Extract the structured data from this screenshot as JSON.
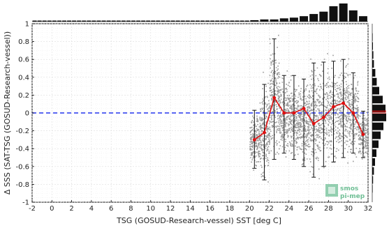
{
  "chart_data": {
    "type": "scatter",
    "xlabel": "TSG (GOSUD-Research-vessel) SST [deg C]",
    "ylabel": "Δ SSS (SAT-TSG (GOSUD-Research-vessel))",
    "xlim": [
      -2,
      32
    ],
    "ylim": [
      -1,
      1
    ],
    "x_ticks": [
      "-2",
      "0",
      "2",
      "4",
      "6",
      "8",
      "10",
      "12",
      "14",
      "16",
      "18",
      "20",
      "22",
      "24",
      "26",
      "28",
      "30",
      "32"
    ],
    "y_ticks": [
      "-1",
      "-0.8",
      "-0.6",
      "-0.4",
      "-0.2",
      "0",
      "0.2",
      "0.4",
      "0.6",
      "0.8",
      "1"
    ],
    "grid": true,
    "reference_line": {
      "y": 0,
      "color": "#2233ee",
      "style": "dashed"
    },
    "series": [
      {
        "color": "#e01010",
        "x": [
          20.5,
          21.5,
          22.5,
          23.5,
          24.5,
          25.5,
          26.5,
          27.5,
          28.5,
          29.5,
          30.5,
          31.5
        ],
        "y": [
          -0.3,
          -0.22,
          0.17,
          0.0,
          0.0,
          0.05,
          -0.12,
          -0.05,
          0.07,
          0.11,
          0.0,
          -0.24
        ],
        "err_low": [
          -0.62,
          -0.75,
          -0.52,
          -0.45,
          -0.52,
          -0.6,
          -0.72,
          -0.6,
          -0.55,
          -0.5,
          -0.45,
          -0.5
        ],
        "err_high": [
          0.03,
          0.32,
          0.83,
          0.42,
          0.42,
          0.38,
          0.56,
          0.57,
          0.58,
          0.6,
          0.45,
          0.02
        ]
      }
    ],
    "scatter_cloud_color": "#888888",
    "top_histogram": {
      "bins_x": [
        20.5,
        21.5,
        22.5,
        23.5,
        24.5,
        25.5,
        26.5,
        27.5,
        28.5,
        29.5,
        30.5,
        31.5
      ],
      "heights": [
        0.08,
        0.12,
        0.12,
        0.18,
        0.22,
        0.3,
        0.42,
        0.55,
        0.85,
        1.0,
        0.62,
        0.3
      ]
    },
    "right_histogram": {
      "bins_y": [
        0.85,
        0.75,
        0.65,
        0.55,
        0.45,
        0.35,
        0.25,
        0.15,
        0.05,
        -0.05,
        -0.15,
        -0.25,
        -0.35,
        -0.45,
        -0.55,
        -0.65,
        -0.75,
        -0.85
      ],
      "widths": [
        0.03,
        0.05,
        0.08,
        0.12,
        0.22,
        0.32,
        0.5,
        0.75,
        0.95,
        1.0,
        0.8,
        0.6,
        0.45,
        0.3,
        0.2,
        0.12,
        0.06,
        0.03
      ]
    },
    "red_marker_color": "#e01010",
    "logo": {
      "line1": "smos",
      "line2": "pi-mep",
      "color": "#5cb88a"
    }
  }
}
